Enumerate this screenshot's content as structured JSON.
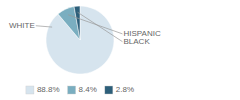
{
  "chart_data": {
    "type": "pie",
    "categories": [
      "WHITE",
      "HISPANIC",
      "BLACK"
    ],
    "values": [
      88.8,
      8.4,
      2.8
    ],
    "value_labels": [
      "88.8%",
      "8.4%",
      "2.8%"
    ],
    "colors": [
      "#d6e4ee",
      "#7aaec0",
      "#2d5f7a"
    ],
    "legend": "bottom"
  }
}
